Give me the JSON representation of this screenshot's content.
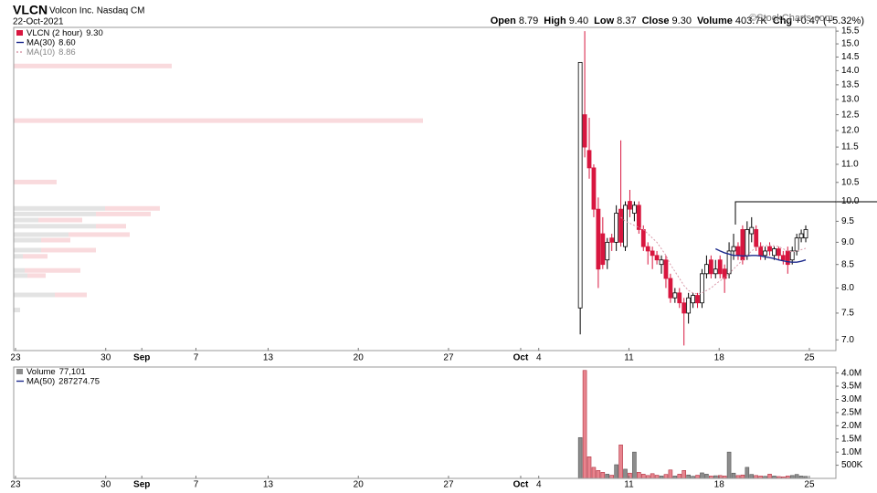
{
  "header": {
    "symbol": "VLCN",
    "company": "Volcon Inc. Nasdaq CM",
    "date": "22-Oct-2021",
    "watermark": "©StockCharts.com",
    "quote": [
      {
        "label": "Open",
        "value": "8.79"
      },
      {
        "label": "High",
        "value": "9.40"
      },
      {
        "label": "Low",
        "value": "8.37"
      },
      {
        "label": "Close",
        "value": "9.30"
      },
      {
        "label": "Volume",
        "value": "403.7K"
      },
      {
        "label": "Chg",
        "value": "+0.47 (+5.32%)"
      }
    ]
  },
  "chart_data": [
    {
      "type": "candlestick",
      "log_scale": true,
      "grid": false,
      "xlim": [
        -0.1,
        45.47
      ],
      "ylim": [
        6.81,
        15.65
      ],
      "xticks": [
        {
          "value": 0,
          "label": "23"
        },
        {
          "value": 5,
          "label": "30"
        },
        {
          "value": 7,
          "label": "Sep",
          "bold": true
        },
        {
          "value": 10,
          "label": "7"
        },
        {
          "value": 14,
          "label": "13"
        },
        {
          "value": 19,
          "label": "20"
        },
        {
          "value": 24,
          "label": "27"
        },
        {
          "value": 28,
          "label": "Oct",
          "bold": true
        },
        {
          "value": 29,
          "label": "4"
        },
        {
          "value": 34,
          "label": "11"
        },
        {
          "value": 39,
          "label": "18"
        },
        {
          "value": 44,
          "label": "25"
        }
      ],
      "yticks": [
        {
          "value": 7,
          "label": "7.0"
        },
        7.5,
        {
          "value": 8,
          "label": "8.0"
        },
        8.5,
        {
          "value": 9,
          "label": "9.0"
        },
        9.5,
        {
          "value": 10,
          "label": "10.0"
        },
        10.5,
        {
          "value": 11,
          "label": "11.0"
        },
        11.5,
        {
          "value": 12,
          "label": "12.0"
        },
        12.5,
        {
          "value": 13,
          "label": "13.0"
        },
        13.5,
        {
          "value": 14,
          "label": "14.0"
        },
        14.5,
        {
          "value": 15,
          "label": "15.0"
        },
        15.5
      ],
      "x": [
        31.3,
        31.55,
        31.8,
        32.05,
        32.3,
        32.55,
        32.8,
        33.05,
        33.3,
        33.55,
        33.8,
        34.05,
        34.3,
        34.55,
        34.8,
        35.05,
        35.3,
        35.55,
        35.8,
        36.05,
        36.3,
        36.55,
        36.8,
        37.05,
        37.3,
        37.55,
        37.8,
        38.05,
        38.3,
        38.55,
        38.8,
        39.05,
        39.3,
        39.55,
        39.8,
        40.05,
        40.3,
        40.55,
        40.8,
        41.05,
        41.3,
        41.55,
        41.8,
        42.05,
        42.3,
        42.55,
        42.8,
        43.05,
        43.3,
        43.55,
        43.8
      ],
      "series": [
        {
          "name": "VLCN (2 hour)",
          "legend_value": "9.30",
          "up_color": "#ffffff",
          "down_color": "#d8163f",
          "edge_color": "#000000",
          "open": [
            7.6,
            12.5,
            11.4,
            10.9,
            9.8,
            9.2,
            8.6,
            9.1,
            9.0,
            9.8,
            8.9,
            10.0,
            9.7,
            9.9,
            9.3,
            8.9,
            8.8,
            8.7,
            8.5,
            8.6,
            8.2,
            7.8,
            7.9,
            7.7,
            7.5,
            7.7,
            7.85,
            7.7,
            8.3,
            8.6,
            8.3,
            8.6,
            8.4,
            8.3,
            8.8,
            8.9,
            9.3,
            8.7,
            9.2,
            9.3,
            8.9,
            8.7,
            8.9,
            8.7,
            8.85,
            8.7,
            8.8,
            8.6,
            8.8,
            9.1,
            9.1
          ],
          "high": [
            14.3,
            15.5,
            12.4,
            11.0,
            10.1,
            9.6,
            9.1,
            9.2,
            9.9,
            11.7,
            10.0,
            10.3,
            10.0,
            10.0,
            9.4,
            9.0,
            8.9,
            8.8,
            8.7,
            8.7,
            8.3,
            8.0,
            8.0,
            7.8,
            7.9,
            7.9,
            7.9,
            8.4,
            8.7,
            8.7,
            8.6,
            8.7,
            8.5,
            9.0,
            9.2,
            9.0,
            9.4,
            9.5,
            9.6,
            9.4,
            9.0,
            8.9,
            9.0,
            8.9,
            8.9,
            8.8,
            8.9,
            8.9,
            9.2,
            9.3,
            9.4
          ],
          "low": [
            7.1,
            11.2,
            10.6,
            9.6,
            8.0,
            8.4,
            8.4,
            8.8,
            8.8,
            8.9,
            8.8,
            9.6,
            9.5,
            9.2,
            8.8,
            8.5,
            8.4,
            8.5,
            8.3,
            8.0,
            7.7,
            7.7,
            7.6,
            6.9,
            7.3,
            7.6,
            7.6,
            7.6,
            8.2,
            8.2,
            8.2,
            8.2,
            7.9,
            8.2,
            8.6,
            8.6,
            8.5,
            8.6,
            9.0,
            8.8,
            8.6,
            8.6,
            8.7,
            8.6,
            8.6,
            8.5,
            8.3,
            8.5,
            8.7,
            9.0,
            9.0
          ],
          "close": [
            14.3,
            11.5,
            10.9,
            9.8,
            8.4,
            8.5,
            9.0,
            9.0,
            9.7,
            9.0,
            9.9,
            9.8,
            9.9,
            9.3,
            8.9,
            8.8,
            8.7,
            8.6,
            8.6,
            8.2,
            7.8,
            7.9,
            7.7,
            7.5,
            7.8,
            7.85,
            7.7,
            8.3,
            8.5,
            8.3,
            8.4,
            8.3,
            8.2,
            8.8,
            8.9,
            8.7,
            8.6,
            9.3,
            9.35,
            8.9,
            8.7,
            8.8,
            8.8,
            8.85,
            8.7,
            8.6,
            8.5,
            8.8,
            9.1,
            9.2,
            9.3
          ]
        },
        {
          "name": "MA(30)",
          "legend_value": "8.60",
          "color": "#1c2a8c",
          "dashed": false,
          "values": [
            null,
            null,
            null,
            null,
            null,
            null,
            null,
            null,
            null,
            null,
            null,
            null,
            null,
            null,
            null,
            null,
            null,
            null,
            null,
            null,
            null,
            null,
            null,
            null,
            null,
            null,
            null,
            null,
            null,
            null,
            8.85,
            8.8,
            8.76,
            8.73,
            8.7,
            8.7,
            8.69,
            8.69,
            8.7,
            8.7,
            8.69,
            8.67,
            8.65,
            8.63,
            8.6,
            8.58,
            8.56,
            8.55,
            8.55,
            8.57,
            8.6
          ]
        },
        {
          "name": "MA(10)",
          "legend_value": "8.86",
          "color": "#d99aaa",
          "dashed": true,
          "values": [
            null,
            null,
            null,
            null,
            null,
            null,
            null,
            null,
            null,
            9.6,
            9.5,
            9.45,
            9.4,
            9.35,
            9.3,
            9.2,
            9.1,
            9.0,
            8.85,
            8.7,
            8.5,
            8.35,
            8.2,
            8.05,
            7.95,
            7.9,
            7.88,
            7.9,
            7.95,
            8.0,
            8.08,
            8.15,
            8.22,
            8.3,
            8.4,
            8.5,
            8.6,
            8.7,
            8.8,
            8.88,
            8.9,
            8.92,
            8.93,
            8.92,
            8.9,
            8.85,
            8.8,
            8.78,
            8.8,
            8.83,
            8.86
          ]
        }
      ],
      "volume_by_price": {
        "up_color": "#e3e3e3",
        "down_color": "#f9dadd",
        "prices": [
          14.17,
          12.31,
          10.51,
          9.82,
          9.68,
          9.53,
          9.38,
          9.18,
          9.05,
          8.82,
          8.68,
          8.37,
          8.26,
          7.86,
          7.56
        ],
        "up": [
          0,
          0,
          0,
          1000000,
          900000,
          270000,
          900000,
          600000,
          300000,
          300000,
          100000,
          120000,
          150000,
          450000,
          70000
        ],
        "down": [
          1730000,
          4480000,
          470000,
          600000,
          600000,
          480000,
          330000,
          670000,
          320000,
          600000,
          270000,
          610000,
          200000,
          350000,
          0
        ]
      }
    },
    {
      "type": "volume",
      "grid": false,
      "ylim": [
        0,
        4230000
      ],
      "yticks": [
        {
          "value": 500000,
          "label": "500K"
        },
        {
          "value": 1000000,
          "label": "1.0M"
        },
        {
          "value": 1500000,
          "label": "1.5M"
        },
        {
          "value": 2000000,
          "label": "2.0M"
        },
        {
          "value": 2500000,
          "label": "2.5M"
        },
        {
          "value": 3000000,
          "label": "3.0M"
        },
        {
          "value": 3500000,
          "label": "3.5M"
        },
        {
          "value": 4000000,
          "label": "4.0M"
        }
      ],
      "up_color": "#8c8c8c",
      "down_color": "#e8848e",
      "series": [
        {
          "name": "Volume",
          "legend_value": "77,101",
          "values": [
            1550000,
            4100000,
            820000,
            420000,
            300000,
            230000,
            160000,
            120000,
            520000,
            1270000,
            350000,
            200000,
            1000000,
            230000,
            160000,
            110000,
            180000,
            120000,
            90000,
            150000,
            320000,
            90000,
            160000,
            300000,
            130000,
            80000,
            120000,
            210000,
            160000,
            90000,
            100000,
            110000,
            90000,
            1000000,
            200000,
            110000,
            130000,
            420000,
            150000,
            110000,
            90000,
            80000,
            160000,
            90000,
            70000,
            60000,
            90000,
            110000,
            150000,
            90000,
            77101
          ]
        },
        {
          "name": "MA(50)",
          "legend_value": "287274.75",
          "color": "#1c2a8c"
        }
      ]
    }
  ]
}
